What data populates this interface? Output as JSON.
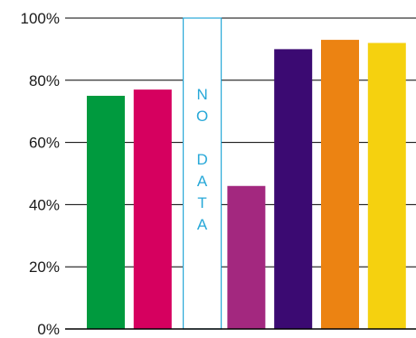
{
  "chart_data": {
    "type": "bar",
    "title": "",
    "xlabel": "",
    "ylabel": "",
    "ylim": [
      0,
      100
    ],
    "y_ticks": [
      "0%",
      "20%",
      "40%",
      "60%",
      "80%",
      "100%"
    ],
    "y_tick_values": [
      0,
      20,
      40,
      60,
      80,
      100
    ],
    "grid": true,
    "legend": "none",
    "bars": [
      {
        "value": 75,
        "color": "#009a3e"
      },
      {
        "value": 77,
        "color": "#d6005f"
      },
      {
        "value": null,
        "no_data": true,
        "label": "NO DATA",
        "color": "#27a8d8"
      },
      {
        "value": 46,
        "color": "#a3287f"
      },
      {
        "value": 90,
        "color": "#3b0a72"
      },
      {
        "value": 93,
        "color": "#ec8312"
      },
      {
        "value": 92,
        "color": "#f5d10f"
      }
    ]
  }
}
